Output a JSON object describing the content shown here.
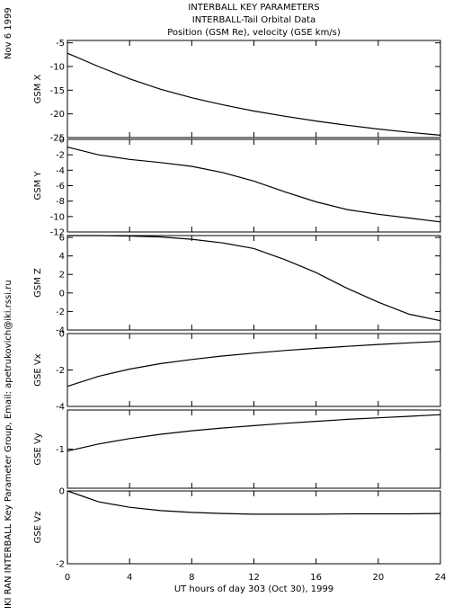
{
  "header": {
    "title": "INTERBALL KEY PARAMETERS",
    "subtitle": "INTERBALL-Tail Orbital Data",
    "subtitle2": "Position (GSM Re), velocity (GSE km/s)"
  },
  "side": {
    "date": "Nov  6 1999",
    "credit": "IKI RAN INTERBALL Key Parameter Group, Email: apetrukovich@iki.rssi.ru"
  },
  "chart_data": [
    {
      "type": "line",
      "ylabel": "GSM X",
      "ylim": [
        -25,
        -4.5
      ],
      "yticks": [
        -25,
        -20,
        -15,
        -10,
        -5
      ],
      "ytick_labels": [
        "-25",
        "-20",
        "-15",
        "-10",
        "-5"
      ],
      "x": [
        0,
        2,
        4,
        6,
        8,
        10,
        12,
        14,
        16,
        18,
        20,
        22,
        24
      ],
      "values": [
        -7.2,
        -10.0,
        -12.6,
        -14.8,
        -16.6,
        -18.1,
        -19.4,
        -20.5,
        -21.5,
        -22.4,
        -23.2,
        -23.9,
        -24.5
      ]
    },
    {
      "type": "line",
      "ylabel": "GSM Y",
      "ylim": [
        -12,
        0
      ],
      "yticks": [
        -12,
        -10,
        -8,
        -6,
        -4,
        -2,
        0
      ],
      "ytick_labels": [
        "-12",
        "-10",
        "-8",
        "-6",
        "-4",
        "-2",
        "0"
      ],
      "x": [
        0,
        2,
        4,
        6,
        8,
        10,
        12,
        14,
        16,
        18,
        20,
        22,
        24
      ],
      "values": [
        -1.0,
        -2.0,
        -2.6,
        -3.0,
        -3.5,
        -4.3,
        -5.4,
        -6.8,
        -8.1,
        -9.1,
        -9.7,
        -10.2,
        -10.7
      ]
    },
    {
      "type": "line",
      "ylabel": "GSM Z",
      "ylim": [
        -4,
        6.2
      ],
      "yticks": [
        -4,
        -2,
        0,
        2,
        4,
        6
      ],
      "ytick_labels": [
        "-4",
        "-2",
        "0",
        "2",
        "4",
        "6"
      ],
      "x": [
        0,
        2,
        4,
        6,
        8,
        10,
        12,
        14,
        16,
        18,
        20,
        22,
        24
      ],
      "values": [
        6.2,
        6.2,
        6.15,
        6.05,
        5.8,
        5.4,
        4.8,
        3.6,
        2.2,
        0.5,
        -1.0,
        -2.3,
        -3.0
      ]
    },
    {
      "type": "line",
      "ylabel": "GSE Vx",
      "ylim": [
        -4,
        0
      ],
      "yticks": [
        -4,
        -2,
        0
      ],
      "ytick_labels": [
        "-4",
        "-2",
        "0"
      ],
      "x": [
        0,
        2,
        4,
        6,
        8,
        10,
        12,
        14,
        16,
        18,
        20,
        22,
        24
      ],
      "values": [
        -2.9,
        -2.35,
        -1.95,
        -1.65,
        -1.42,
        -1.23,
        -1.07,
        -0.93,
        -0.81,
        -0.7,
        -0.6,
        -0.51,
        -0.43
      ]
    },
    {
      "type": "line",
      "ylabel": "GSE Vy",
      "ylim": [
        -2,
        0
      ],
      "yticks": [
        -2,
        -1,
        0
      ],
      "ytick_labels": [
        "",
        "-1",
        ""
      ],
      "x": [
        0,
        2,
        4,
        6,
        8,
        10,
        12,
        14,
        16,
        18,
        20,
        22,
        24
      ],
      "values": [
        -1.05,
        -0.87,
        -0.73,
        -0.62,
        -0.53,
        -0.46,
        -0.4,
        -0.34,
        -0.29,
        -0.24,
        -0.2,
        -0.16,
        -0.12
      ]
    },
    {
      "type": "line",
      "ylabel": "GSE Vz",
      "ylim": [
        -2,
        0
      ],
      "yticks": [
        -2,
        0
      ],
      "ytick_labels": [
        "-2",
        "0"
      ],
      "x": [
        0,
        2,
        4,
        6,
        8,
        10,
        12,
        14,
        16,
        18,
        20,
        22,
        24
      ],
      "values": [
        0.0,
        -0.3,
        -0.45,
        -0.54,
        -0.59,
        -0.62,
        -0.64,
        -0.64,
        -0.64,
        -0.63,
        -0.63,
        -0.63,
        -0.62
      ]
    }
  ],
  "xaxis": {
    "label": "UT hours of day 303 (Oct 30), 1999",
    "xlim": [
      0,
      24
    ],
    "ticks": [
      0,
      4,
      8,
      12,
      16,
      20,
      24
    ],
    "tick_labels": [
      "0",
      "4",
      "8",
      "12",
      "16",
      "20",
      "24"
    ]
  }
}
